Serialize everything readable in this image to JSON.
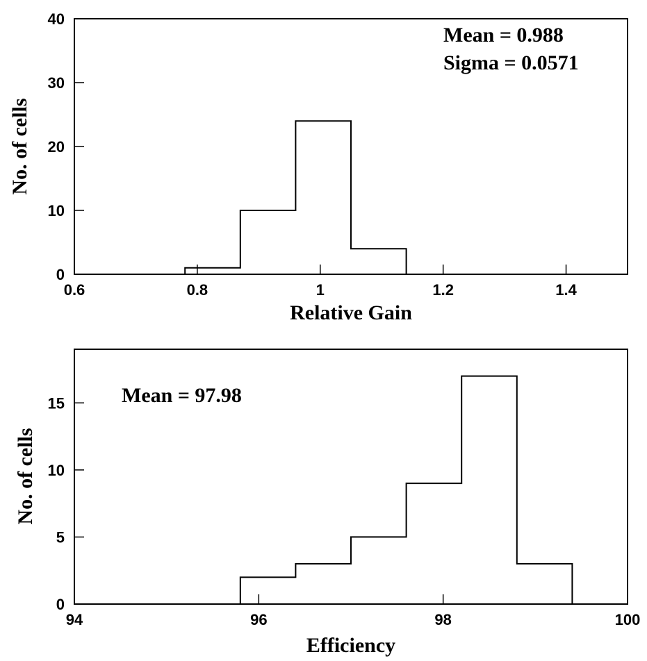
{
  "chart_data": [
    {
      "type": "bar",
      "histogram": true,
      "title": "",
      "xlabel": "Relative Gain",
      "ylabel": "No. of cells",
      "xlim": [
        0.6,
        1.5
      ],
      "ylim": [
        0,
        40
      ],
      "xticks": [
        0.6,
        0.8,
        1.0,
        1.2,
        1.4
      ],
      "xtick_labels": [
        "0.6",
        "0.8",
        "1",
        "1.2",
        "1.4"
      ],
      "yticks": [
        0,
        10,
        20,
        30,
        40
      ],
      "ytick_labels": [
        "0",
        "10",
        "20",
        "30",
        "40"
      ],
      "bin_edges": [
        0.78,
        0.87,
        0.96,
        1.05,
        1.14
      ],
      "values": [
        1,
        10,
        24,
        4
      ],
      "annotations": [
        "Mean = 0.988",
        "Sigma = 0.0571"
      ],
      "grid": false,
      "legend": "none"
    },
    {
      "type": "bar",
      "histogram": true,
      "title": "",
      "xlabel": "Efficiency",
      "ylabel": "No. of cells",
      "xlim": [
        94,
        100
      ],
      "ylim": [
        0,
        19
      ],
      "xticks": [
        94,
        96,
        98,
        100
      ],
      "xtick_labels": [
        "94",
        "96",
        "98",
        "100"
      ],
      "yticks": [
        0,
        5,
        10,
        15
      ],
      "ytick_labels": [
        "0",
        "5",
        "10",
        "15"
      ],
      "bin_edges": [
        95.8,
        96.4,
        97.0,
        97.6,
        98.2,
        98.8,
        99.4
      ],
      "values": [
        2,
        3,
        5,
        9,
        17,
        3
      ],
      "annotations": [
        "Mean = 97.98"
      ],
      "grid": false,
      "legend": "none"
    }
  ]
}
